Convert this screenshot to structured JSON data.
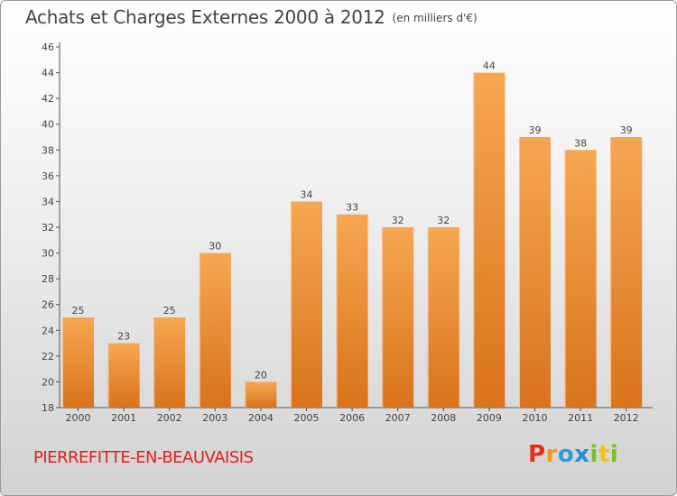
{
  "chart_data": {
    "type": "bar",
    "title": "Achats et Charges Externes 2000 à 2012",
    "subtitle": "(en milliers d'€)",
    "categories": [
      "2000",
      "2001",
      "2002",
      "2003",
      "2004",
      "2005",
      "2006",
      "2007",
      "2008",
      "2009",
      "2010",
      "2011",
      "2012"
    ],
    "values": [
      25,
      23,
      25,
      30,
      20,
      34,
      33,
      32,
      32,
      44,
      39,
      38,
      39
    ],
    "ylim": [
      18,
      46
    ],
    "yticks": [
      18,
      20,
      22,
      24,
      26,
      28,
      30,
      32,
      34,
      36,
      38,
      40,
      42,
      44,
      46
    ],
    "grid": false,
    "bar_color_top": "#f7a651",
    "bar_color_bottom": "#d8731b"
  },
  "footer": {
    "place_name": "PIERREFITTE-EN-BEAUVAISIS",
    "place_color": "#e0201b",
    "logo_text": "Proxiti",
    "logo_colors": [
      "#e52f1c",
      "#f39c12",
      "#27a0dc",
      "#1f8fd1",
      "#7cbf2b",
      "#f4c20d",
      "#7cbf2b"
    ]
  }
}
